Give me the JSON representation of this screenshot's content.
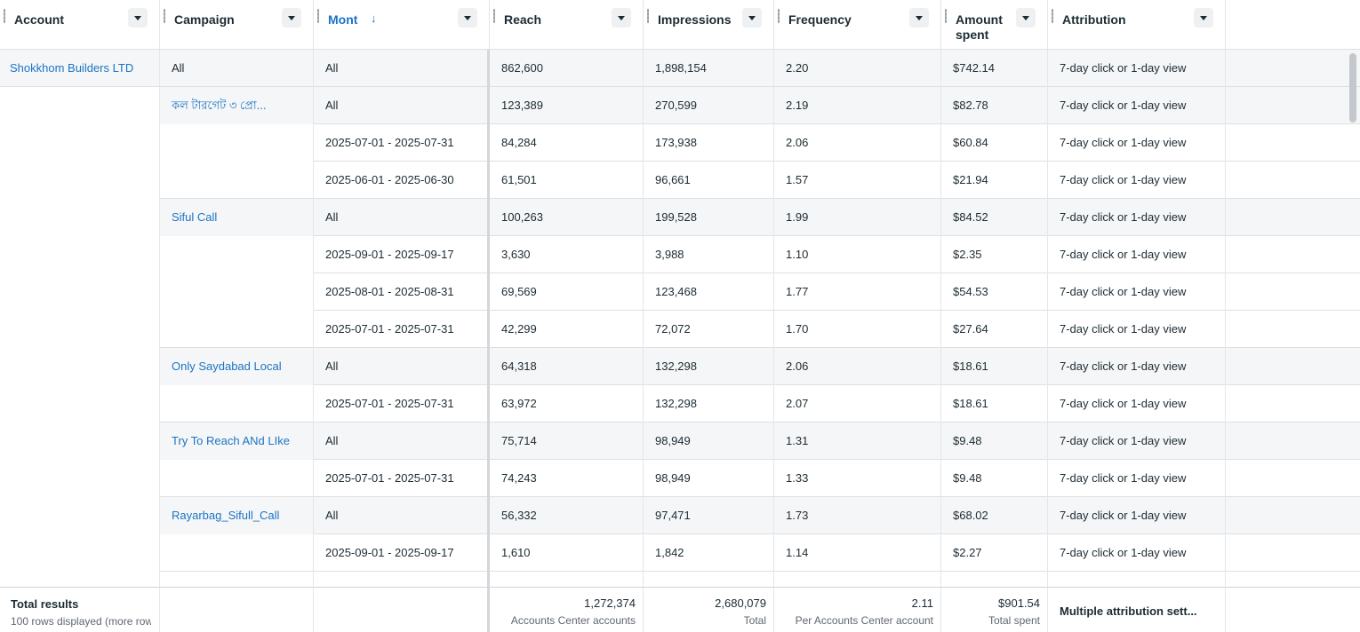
{
  "header": {
    "columns": [
      "Account",
      "Campaign",
      "Mont",
      "Reach",
      "Impressions",
      "Frequency",
      "Amount spent",
      "Attribution"
    ]
  },
  "rows": [
    {
      "account": "Shokkhom Builders LTD",
      "campaign": "All",
      "month": "All",
      "reach": "862,600",
      "impressions": "1,898,154",
      "frequency": "2.20",
      "amount_spent": "$742.14",
      "attribution": "7-day click or 1-day view"
    },
    {
      "campaign": "কল টারগেট ৩ প্রো...",
      "month": "All",
      "reach": "123,389",
      "impressions": "270,599",
      "frequency": "2.19",
      "amount_spent": "$82.78",
      "attribution": "7-day click or 1-day view"
    },
    {
      "month": "2025-07-01 - 2025-07-31",
      "reach": "84,284",
      "impressions": "173,938",
      "frequency": "2.06",
      "amount_spent": "$60.84",
      "attribution": "7-day click or 1-day view"
    },
    {
      "month": "2025-06-01 - 2025-06-30",
      "reach": "61,501",
      "impressions": "96,661",
      "frequency": "1.57",
      "amount_spent": "$21.94",
      "attribution": "7-day click or 1-day view"
    },
    {
      "campaign": "Siful Call",
      "month": "All",
      "reach": "100,263",
      "impressions": "199,528",
      "frequency": "1.99",
      "amount_spent": "$84.52",
      "attribution": "7-day click or 1-day view"
    },
    {
      "month": "2025-09-01 - 2025-09-17",
      "reach": "3,630",
      "impressions": "3,988",
      "frequency": "1.10",
      "amount_spent": "$2.35",
      "attribution": "7-day click or 1-day view"
    },
    {
      "month": "2025-08-01 - 2025-08-31",
      "reach": "69,569",
      "impressions": "123,468",
      "frequency": "1.77",
      "amount_spent": "$54.53",
      "attribution": "7-day click or 1-day view"
    },
    {
      "month": "2025-07-01 - 2025-07-31",
      "reach": "42,299",
      "impressions": "72,072",
      "frequency": "1.70",
      "amount_spent": "$27.64",
      "attribution": "7-day click or 1-day view"
    },
    {
      "campaign": "Only Saydabad Local",
      "month": "All",
      "reach": "64,318",
      "impressions": "132,298",
      "frequency": "2.06",
      "amount_spent": "$18.61",
      "attribution": "7-day click or 1-day view"
    },
    {
      "month": "2025-07-01 - 2025-07-31",
      "reach": "63,972",
      "impressions": "132,298",
      "frequency": "2.07",
      "amount_spent": "$18.61",
      "attribution": "7-day click or 1-day view"
    },
    {
      "campaign": "Try To Reach ANd LIke",
      "month": "All",
      "reach": "75,714",
      "impressions": "98,949",
      "frequency": "1.31",
      "amount_spent": "$9.48",
      "attribution": "7-day click or 1-day view"
    },
    {
      "month": "2025-07-01 - 2025-07-31",
      "reach": "74,243",
      "impressions": "98,949",
      "frequency": "1.33",
      "amount_spent": "$9.48",
      "attribution": "7-day click or 1-day view"
    },
    {
      "campaign": "Rayarbag_Sifull_Call",
      "month": "All",
      "reach": "56,332",
      "impressions": "97,471",
      "frequency": "1.73",
      "amount_spent": "$68.02",
      "attribution": "7-day click or 1-day view"
    },
    {
      "month": "2025-09-01 - 2025-09-17",
      "reach": "1,610",
      "impressions": "1,842",
      "frequency": "1.14",
      "amount_spent": "$2.27",
      "attribution": "7-day click or 1-day view"
    }
  ],
  "footer": {
    "title": "Total results",
    "subtitle": "100 rows displayed (more row",
    "reach": {
      "value": "1,272,374",
      "note": "Accounts Center accounts"
    },
    "impressions": {
      "value": "2,680,079",
      "note": "Total"
    },
    "frequency": {
      "value": "2.11",
      "note": "Per Accounts Center account"
    },
    "amount_spent": {
      "value": "$901.54",
      "note": "Total spent"
    },
    "attribution": "Multiple attribution sett..."
  }
}
